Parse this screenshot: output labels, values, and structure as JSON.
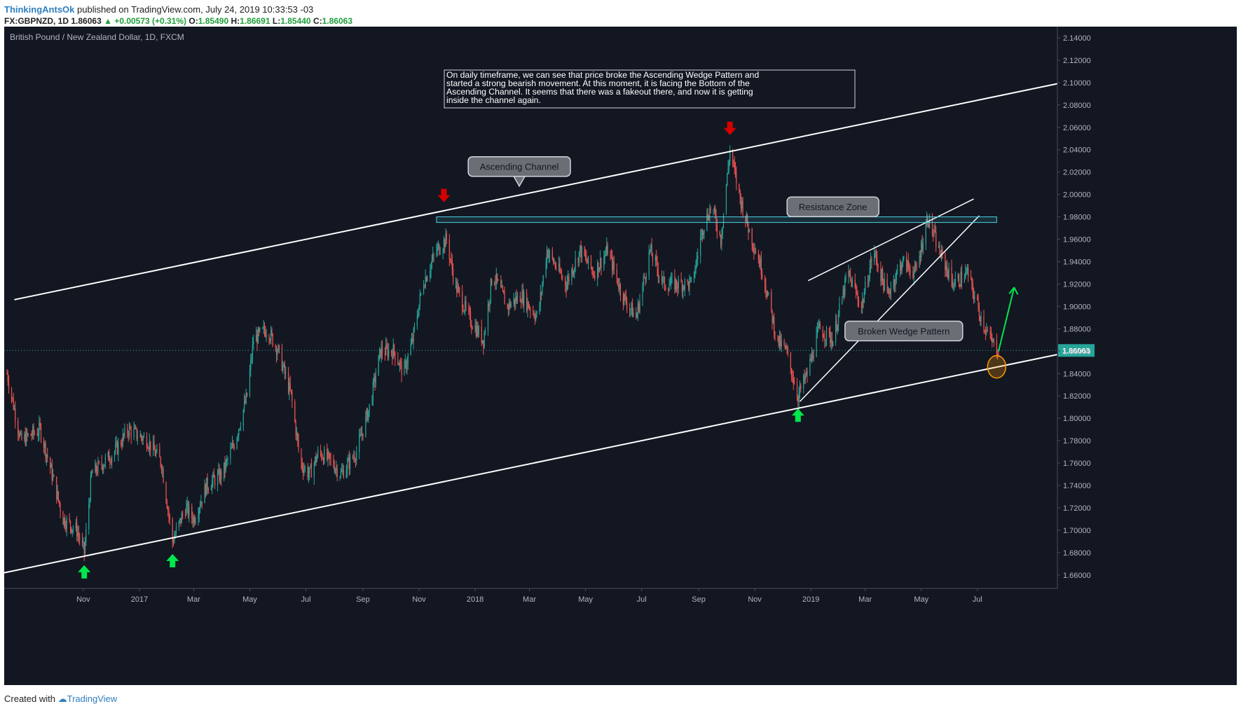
{
  "header": {
    "author": "ThinkingAntsOk",
    "published_text": "published on TradingView.com, July 24, 2019 10:33:53 -03",
    "symbol": "FX:GBPNZD, 1D",
    "last": "1.86063",
    "change": "▲ +0.00573 (+0.31%)",
    "o_label": "O:",
    "o_value": "1.85490",
    "h_label": "H:",
    "h_value": "1.86691",
    "l_label": "L:",
    "l_value": "1.85440",
    "c_label": "C:",
    "c_value": "1.86063"
  },
  "footer": {
    "created_with": "Created with",
    "brand": "TradingView"
  },
  "colors": {
    "background": "#131722",
    "up": "#26a69a",
    "down": "#ef5350",
    "accent": "#2e7fbf",
    "green_arrow": "#00e64d",
    "red_arrow": "#d50000",
    "resistance": "#4dd0e1"
  },
  "chart_data": {
    "type": "candlestick",
    "title": "British Pound / New Zealand Dollar, 1D, FXCM",
    "last_price_label": "1.86063",
    "y_ticks": [
      "2.14000",
      "2.12000",
      "2.10000",
      "2.08000",
      "2.06000",
      "2.04000",
      "2.02000",
      "2.00000",
      "1.98000",
      "1.96000",
      "1.94000",
      "1.92000",
      "1.90000",
      "1.88000",
      "1.86000",
      "1.84000",
      "1.82000",
      "1.80000",
      "1.78000",
      "1.76000",
      "1.74000",
      "1.72000",
      "1.70000",
      "1.68000",
      "1.66000"
    ],
    "ylim": [
      1.648,
      2.15
    ],
    "x_ticks": [
      {
        "label": "Nov",
        "date": "2016-11-01"
      },
      {
        "label": "2017",
        "date": "2017-01-01"
      },
      {
        "label": "Mar",
        "date": "2017-03-01"
      },
      {
        "label": "May",
        "date": "2017-05-01"
      },
      {
        "label": "Jul",
        "date": "2017-07-01"
      },
      {
        "label": "Sep",
        "date": "2017-09-01"
      },
      {
        "label": "Nov",
        "date": "2017-11-01"
      },
      {
        "label": "2018",
        "date": "2018-01-01"
      },
      {
        "label": "Mar",
        "date": "2018-03-01"
      },
      {
        "label": "May",
        "date": "2018-05-01"
      },
      {
        "label": "Jul",
        "date": "2018-07-01"
      },
      {
        "label": "Sep",
        "date": "2018-09-01"
      },
      {
        "label": "Nov",
        "date": "2018-11-01"
      },
      {
        "label": "2019",
        "date": "2019-01-01"
      },
      {
        "label": "Mar",
        "date": "2019-03-01"
      },
      {
        "label": "May",
        "date": "2019-05-01"
      },
      {
        "label": "Jul",
        "date": "2019-07-01"
      }
    ],
    "xlim": [
      "2016-08-07",
      "2019-09-26"
    ],
    "price_path": [
      [
        "2016-08-10",
        1.84
      ],
      [
        "2016-08-25",
        1.78
      ],
      [
        "2016-09-15",
        1.79
      ],
      [
        "2016-09-28",
        1.75
      ],
      [
        "2016-10-10",
        1.71
      ],
      [
        "2016-10-25",
        1.7
      ],
      [
        "2016-11-02",
        1.68
      ],
      [
        "2016-11-10",
        1.75
      ],
      [
        "2016-12-05",
        1.77
      ],
      [
        "2016-12-20",
        1.79
      ],
      [
        "2017-01-10",
        1.78
      ],
      [
        "2017-01-25",
        1.76
      ],
      [
        "2017-02-06",
        1.69
      ],
      [
        "2017-02-20",
        1.72
      ],
      [
        "2017-03-01",
        1.71
      ],
      [
        "2017-03-15",
        1.74
      ],
      [
        "2017-04-01",
        1.75
      ],
      [
        "2017-04-15",
        1.78
      ],
      [
        "2017-04-28",
        1.82
      ],
      [
        "2017-05-05",
        1.87
      ],
      [
        "2017-05-20",
        1.88
      ],
      [
        "2017-06-01",
        1.86
      ],
      [
        "2017-06-15",
        1.82
      ],
      [
        "2017-06-25",
        1.76
      ],
      [
        "2017-07-05",
        1.75
      ],
      [
        "2017-07-15",
        1.77
      ],
      [
        "2017-07-30",
        1.76
      ],
      [
        "2017-08-08",
        1.75
      ],
      [
        "2017-08-25",
        1.77
      ],
      [
        "2017-09-08",
        1.81
      ],
      [
        "2017-09-20",
        1.86
      ],
      [
        "2017-10-05",
        1.86
      ],
      [
        "2017-10-15",
        1.84
      ],
      [
        "2017-10-25",
        1.87
      ],
      [
        "2017-11-05",
        1.92
      ],
      [
        "2017-11-20",
        1.95
      ],
      [
        "2017-12-01",
        1.96
      ],
      [
        "2017-12-10",
        1.92
      ],
      [
        "2017-12-25",
        1.89
      ],
      [
        "2018-01-10",
        1.87
      ],
      [
        "2018-01-20",
        1.93
      ],
      [
        "2018-02-05",
        1.9
      ],
      [
        "2018-02-20",
        1.91
      ],
      [
        "2018-03-10",
        1.89
      ],
      [
        "2018-03-20",
        1.95
      ],
      [
        "2018-04-10",
        1.92
      ],
      [
        "2018-04-25",
        1.95
      ],
      [
        "2018-05-10",
        1.93
      ],
      [
        "2018-05-25",
        1.95
      ],
      [
        "2018-06-10",
        1.91
      ],
      [
        "2018-06-25",
        1.89
      ],
      [
        "2018-07-10",
        1.95
      ],
      [
        "2018-07-25",
        1.92
      ],
      [
        "2018-08-10",
        1.92
      ],
      [
        "2018-08-25",
        1.92
      ],
      [
        "2018-09-05",
        1.97
      ],
      [
        "2018-09-15",
        1.99
      ],
      [
        "2018-09-25",
        1.96
      ],
      [
        "2018-10-05",
        2.04
      ],
      [
        "2018-10-15",
        2.0
      ],
      [
        "2018-10-25",
        1.97
      ],
      [
        "2018-11-10",
        1.93
      ],
      [
        "2018-11-25",
        1.87
      ],
      [
        "2018-12-05",
        1.86
      ],
      [
        "2018-12-18",
        1.82
      ],
      [
        "2018-12-28",
        1.84
      ],
      [
        "2019-01-10",
        1.88
      ],
      [
        "2019-01-25",
        1.87
      ],
      [
        "2019-02-10",
        1.93
      ],
      [
        "2019-02-25",
        1.9
      ],
      [
        "2019-03-10",
        1.95
      ],
      [
        "2019-03-25",
        1.91
      ],
      [
        "2019-04-10",
        1.94
      ],
      [
        "2019-04-25",
        1.93
      ],
      [
        "2019-05-08",
        1.98
      ],
      [
        "2019-05-20",
        1.95
      ],
      [
        "2019-06-05",
        1.92
      ],
      [
        "2019-06-20",
        1.93
      ],
      [
        "2019-07-05",
        1.89
      ],
      [
        "2019-07-15",
        1.87
      ],
      [
        "2019-07-24",
        1.86063
      ]
    ],
    "annotations": {
      "channel_upper": [
        [
          "2016-08-18",
          1.906
        ],
        [
          "2019-09-26",
          2.099
        ]
      ],
      "channel_lower": [
        [
          "2016-08-07",
          1.662
        ],
        [
          "2019-09-26",
          1.857
        ]
      ],
      "resistance_zone": {
        "from": "2017-11-20",
        "to": "2019-07-22",
        "top": 1.98,
        "bottom": 1.975
      },
      "wedge_upper": [
        [
          "2018-12-29",
          1.923
        ],
        [
          "2019-06-27",
          1.996
        ]
      ],
      "wedge_lower": [
        [
          "2018-12-20",
          1.815
        ],
        [
          "2019-07-03",
          1.981
        ]
      ],
      "green_up_arrows": [
        [
          "2016-11-02",
          1.68
        ],
        [
          "2017-02-06",
          1.69
        ],
        [
          "2018-12-18",
          1.82
        ]
      ],
      "red_down_arrows": [
        [
          "2017-11-28",
          1.99
        ],
        [
          "2018-10-05",
          2.05
        ]
      ],
      "projection_arrow": [
        [
          "2019-07-24",
          1.86
        ],
        [
          "2019-08-10",
          1.917
        ]
      ],
      "circle_point": [
        "2019-07-22",
        1.846
      ],
      "callouts": [
        {
          "text": "Ascending Channel",
          "at": [
            "2018-02-18",
            2.025
          ]
        },
        {
          "text": "Resistance Zone",
          "at": [
            "2019-01-25",
            1.989
          ]
        },
        {
          "text": "Broken Wedge Pattern",
          "at": [
            "2019-04-12",
            1.878
          ]
        }
      ],
      "note": "On daily timeframe, we can see that price broke the Ascending Wedge Pattern and started a strong bearish movement. At this moment, it is facing the Bottom of the Ascending Channel. It seems that there was a fakeout there, and now it is getting inside the channel again."
    }
  }
}
